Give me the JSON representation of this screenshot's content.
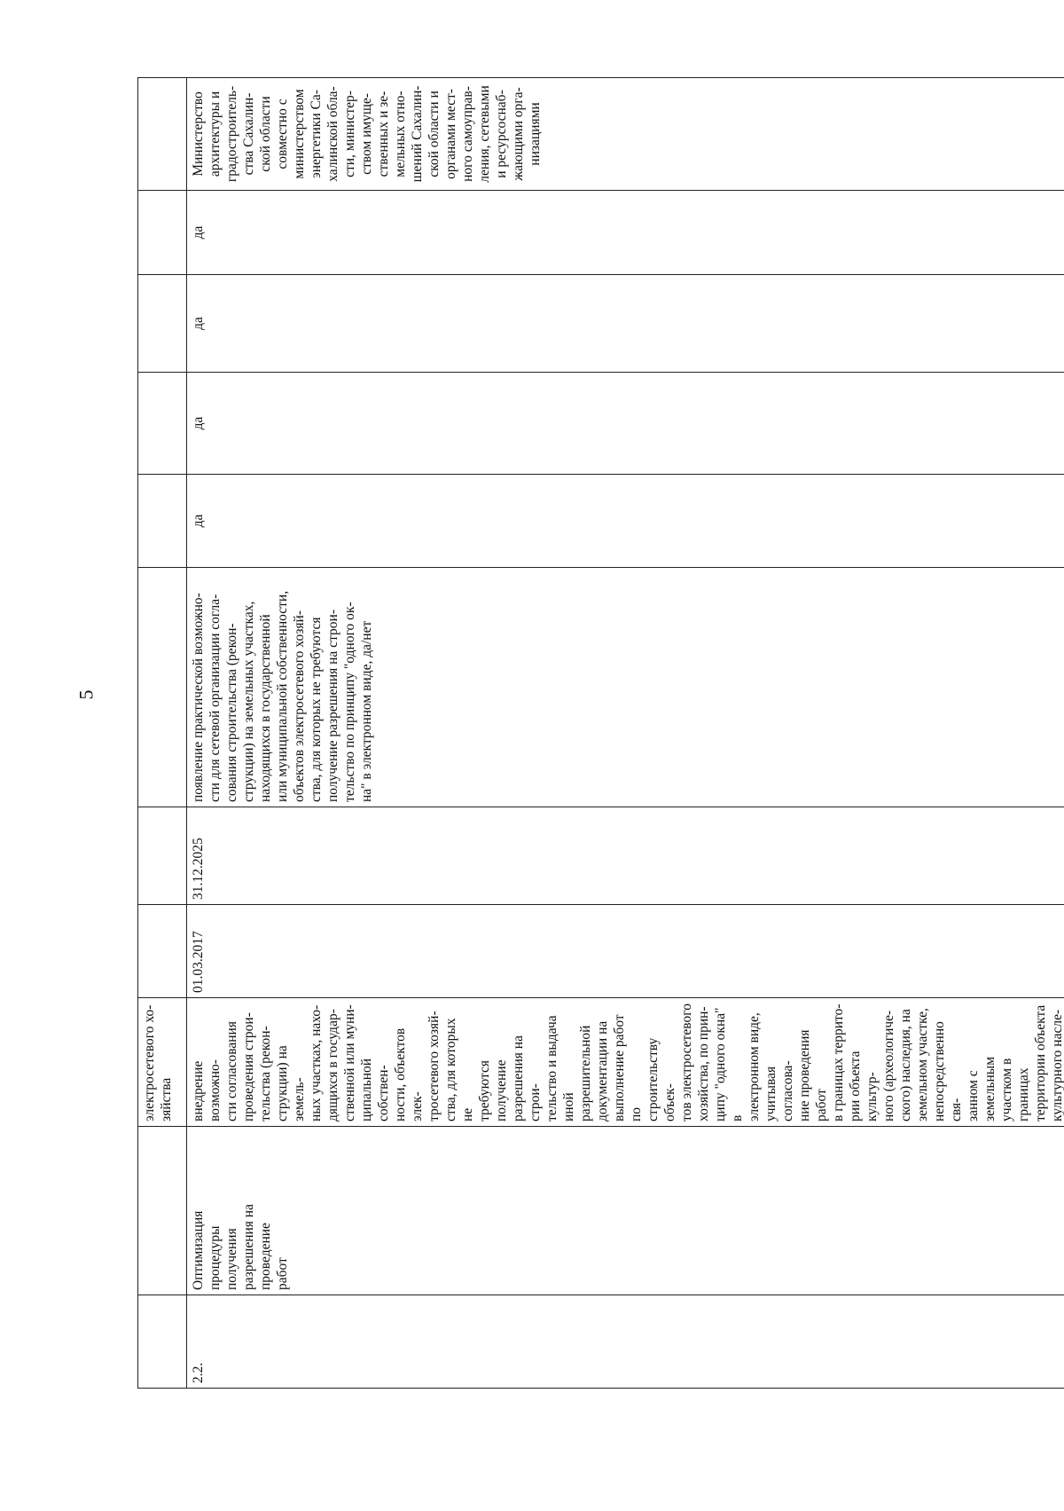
{
  "page_number": "5",
  "table": {
    "header_row": [
      "",
      "",
      "электросетевого хо-\nзяйства",
      "",
      "",
      "",
      "",
      "",
      "",
      "",
      ""
    ],
    "row": {
      "number": "2.2.",
      "name": "Оптимизация\nпроцедуры\nполучения\nразрешения на\nпроведение\nработ",
      "description": "внедрение возможно-\nсти согласования\nпроведения строи-\nтельства (рекон-\nструкции) на земель-\nных участках, нахо-\nдящихся в государ-\nственной или муни-\nципальной собствен-\nности, объектов элек-\nтросетевого хозяй-\nства, для которых не\nтребуются получение\nразрешения на строи-\nтельство и выдача\nиной разрешительной\nдокументации на\nвыполнение работ по\nстроительству объек-\nтов электросетевого\nхозяйства, по прин-\nципу \"одного окна\" в\nэлектронном виде,\nучитывая согласова-\nние проведения работ\nв границах террито-\nрии объекта культур-\nного (археологиче-\nского) наследия, на\nземельном участке,\nнепосредственно свя-\nзанном с земельным\nучастком в границах\nтерритории объекта\nкультурного насле-\nдия, и согласования\nпроектной докумен-\nтации с ресурсоснаб-\nжающими организа-\nциями и балансодер-\nжателями территорий",
      "start_date": "01.03.2017",
      "end_date": "31.12.2025",
      "indicator": "появление практической возможно-\nсти для сетевой организации согла-\nсования строительства (рекон-\nструкции) на земельных участках,\nнаходящихся в государственной\nили муниципальной собственности,\nобъектов электросетевого хозяй-\nства, для которых не требуются\nполучение разрешения на строи-\nтельство по принципу \"одного ок-\nна\" в электронном виде, да/нет",
      "values": [
        "да",
        "да",
        "да",
        "да"
      ],
      "responsible": "Министерство\nархитектуры и\nградостроитель-\nства Сахалин-\nской области\nсовместно с\nминистерством\nэнергетики Са-\nхалинской обла-\nсти, министер-\nством имуще-\nственных и зе-\nмельных отно-\nшений Сахалин-\nской области и\nорганами мест-\nного самоуправ-\nления, сетевыми\nи ресурсоснаб-\nжающими орга-\nнизациями"
    }
  }
}
